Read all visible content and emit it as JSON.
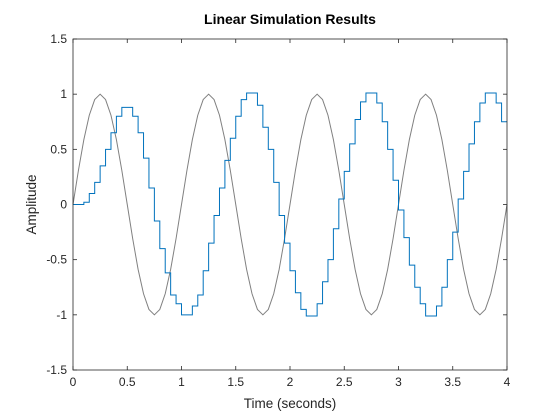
{
  "chart_data": {
    "type": "line",
    "title": "Linear Simulation Results",
    "xlabel": "Time (seconds)",
    "ylabel": "Amplitude",
    "xlim": [
      0,
      4
    ],
    "ylim": [
      -1.5,
      1.5
    ],
    "x_ticks": [
      "0",
      "0.5",
      "1",
      "1.5",
      "2",
      "2.5",
      "3",
      "3.5",
      "4"
    ],
    "y_ticks": [
      "-1.5",
      "-1",
      "-0.5",
      "0",
      "0.5",
      "1",
      "1.5"
    ],
    "x_tick_values": [
      0,
      0.5,
      1,
      1.5,
      2,
      2.5,
      3,
      3.5,
      4
    ],
    "y_tick_values": [
      -1.5,
      -1,
      -0.5,
      0,
      0.5,
      1,
      1.5
    ],
    "grid": false,
    "legend": "none",
    "series": [
      {
        "role": "input",
        "style": "line",
        "color": "#808080",
        "x": [
          0,
          0.05,
          0.1,
          0.15,
          0.2,
          0.25,
          0.3,
          0.35,
          0.4,
          0.45,
          0.5,
          0.55,
          0.6,
          0.65,
          0.7,
          0.75,
          0.8,
          0.85,
          0.9,
          0.95,
          1.0,
          1.05,
          1.1,
          1.15,
          1.2,
          1.25,
          1.3,
          1.35,
          1.4,
          1.45,
          1.5,
          1.55,
          1.6,
          1.65,
          1.7,
          1.75,
          1.8,
          1.85,
          1.9,
          1.95,
          2.0,
          2.05,
          2.1,
          2.15,
          2.2,
          2.25,
          2.3,
          2.35,
          2.4,
          2.45,
          2.5,
          2.55,
          2.6,
          2.65,
          2.7,
          2.75,
          2.8,
          2.85,
          2.9,
          2.95,
          3.0,
          3.05,
          3.1,
          3.15,
          3.2,
          3.25,
          3.3,
          3.35,
          3.4,
          3.45,
          3.5,
          3.55,
          3.6,
          3.65,
          3.7,
          3.75,
          3.8,
          3.85,
          3.9,
          3.95,
          4.0
        ],
        "y": [
          0,
          0.309,
          0.588,
          0.809,
          0.951,
          1.0,
          0.951,
          0.809,
          0.588,
          0.309,
          0,
          -0.309,
          -0.588,
          -0.809,
          -0.951,
          -1.0,
          -0.951,
          -0.809,
          -0.588,
          -0.309,
          0,
          0.309,
          0.588,
          0.809,
          0.951,
          1.0,
          0.951,
          0.809,
          0.588,
          0.309,
          0,
          -0.309,
          -0.588,
          -0.809,
          -0.951,
          -1.0,
          -0.951,
          -0.809,
          -0.588,
          -0.309,
          0,
          0.309,
          0.588,
          0.809,
          0.951,
          1.0,
          0.951,
          0.809,
          0.588,
          0.309,
          0,
          -0.309,
          -0.588,
          -0.809,
          -0.951,
          -1.0,
          -0.951,
          -0.809,
          -0.588,
          -0.309,
          0,
          0.309,
          0.588,
          0.809,
          0.951,
          1.0,
          0.951,
          0.809,
          0.588,
          0.309,
          0,
          -0.309,
          -0.588,
          -0.809,
          -0.951,
          -1.0,
          -0.951,
          -0.809,
          -0.588,
          -0.309,
          0
        ]
      },
      {
        "role": "response",
        "style": "stairs",
        "color": "#0072BD",
        "step": 0.05,
        "x": [
          0,
          0.05,
          0.1,
          0.15,
          0.2,
          0.25,
          0.3,
          0.35,
          0.4,
          0.45,
          0.5,
          0.55,
          0.6,
          0.65,
          0.7,
          0.75,
          0.8,
          0.85,
          0.9,
          0.95,
          1.0,
          1.05,
          1.1,
          1.15,
          1.2,
          1.25,
          1.3,
          1.35,
          1.4,
          1.45,
          1.5,
          1.55,
          1.6,
          1.65,
          1.7,
          1.75,
          1.8,
          1.85,
          1.9,
          1.95,
          2.0,
          2.05,
          2.1,
          2.15,
          2.2,
          2.25,
          2.3,
          2.35,
          2.4,
          2.45,
          2.5,
          2.55,
          2.6,
          2.65,
          2.7,
          2.75,
          2.8,
          2.85,
          2.9,
          2.95,
          3.0,
          3.05,
          3.1,
          3.15,
          3.2,
          3.25,
          3.3,
          3.35,
          3.4,
          3.45,
          3.5,
          3.55,
          3.6,
          3.65,
          3.7,
          3.75,
          3.8,
          3.85,
          3.9,
          3.95
        ],
        "y": [
          0,
          0,
          0.02,
          0.1,
          0.2,
          0.35,
          0.5,
          0.65,
          0.8,
          0.88,
          0.88,
          0.8,
          0.65,
          0.42,
          0.15,
          -0.15,
          -0.4,
          -0.62,
          -0.82,
          -0.9,
          -1.0,
          -1.0,
          -0.92,
          -0.82,
          -0.6,
          -0.35,
          -0.1,
          0.15,
          0.4,
          0.6,
          0.8,
          0.95,
          1.01,
          1.01,
          0.9,
          0.7,
          0.5,
          0.2,
          -0.1,
          -0.35,
          -0.6,
          -0.8,
          -0.95,
          -1.01,
          -1.01,
          -0.9,
          -0.7,
          -0.5,
          -0.22,
          0.05,
          0.3,
          0.55,
          0.77,
          0.93,
          1.01,
          1.01,
          0.92,
          0.75,
          0.5,
          0.22,
          -0.05,
          -0.3,
          -0.55,
          -0.75,
          -0.9,
          -1.01,
          -1.01,
          -0.92,
          -0.75,
          -0.5,
          -0.25,
          0.05,
          0.3,
          0.55,
          0.75,
          0.92,
          1.01,
          1.01,
          0.92,
          0.75
        ]
      }
    ]
  }
}
